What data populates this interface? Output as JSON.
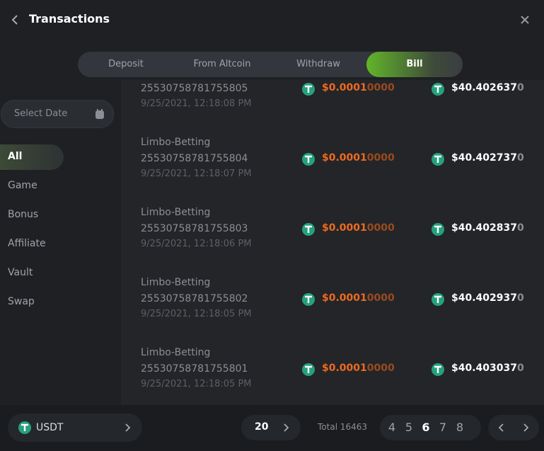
{
  "header": {
    "title": "Transactions"
  },
  "tabs": [
    {
      "label": "Deposit",
      "active": false
    },
    {
      "label": "From Altcoin",
      "active": false
    },
    {
      "label": "Withdraw",
      "active": false
    },
    {
      "label": "Bill",
      "active": true
    }
  ],
  "sidebar": {
    "date_placeholder": "Select Date",
    "filters": [
      {
        "label": "All",
        "active": true
      },
      {
        "label": "Game",
        "active": false
      },
      {
        "label": "Bonus",
        "active": false
      },
      {
        "label": "Affiliate",
        "active": false
      },
      {
        "label": "Vault",
        "active": false
      },
      {
        "label": "Swap",
        "active": false
      }
    ]
  },
  "transactions": [
    {
      "id": "25530758781755805",
      "date": "9/25/2021, 12:18:08 PM",
      "amount": "$0.0001",
      "amount_dim": "0000",
      "balance": "$40.402637",
      "balance_dim": "0"
    },
    {
      "name": "Limbo-Betting",
      "id": "25530758781755804",
      "date": "9/25/2021, 12:18:07 PM",
      "amount": "$0.0001",
      "amount_dim": "0000",
      "balance": "$40.402737",
      "balance_dim": "0"
    },
    {
      "name": "Limbo-Betting",
      "id": "25530758781755803",
      "date": "9/25/2021, 12:18:06 PM",
      "amount": "$0.0001",
      "amount_dim": "0000",
      "balance": "$40.402837",
      "balance_dim": "0"
    },
    {
      "name": "Limbo-Betting",
      "id": "25530758781755802",
      "date": "9/25/2021, 12:18:05 PM",
      "amount": "$0.0001",
      "amount_dim": "0000",
      "balance": "$40.402937",
      "balance_dim": "0"
    },
    {
      "name": "Limbo-Betting",
      "id": "25530758781755801",
      "date": "9/25/2021, 12:18:05 PM",
      "amount": "$0.0001",
      "amount_dim": "0000",
      "balance": "$40.403037",
      "balance_dim": "0"
    }
  ],
  "footer": {
    "currency": "USDT",
    "page_size": "20",
    "total": "Total 16463",
    "pages": [
      {
        "label": "4",
        "active": false
      },
      {
        "label": "5",
        "active": false
      },
      {
        "label": "6",
        "active": true
      },
      {
        "label": "7",
        "active": false
      },
      {
        "label": "8",
        "active": false
      }
    ]
  }
}
